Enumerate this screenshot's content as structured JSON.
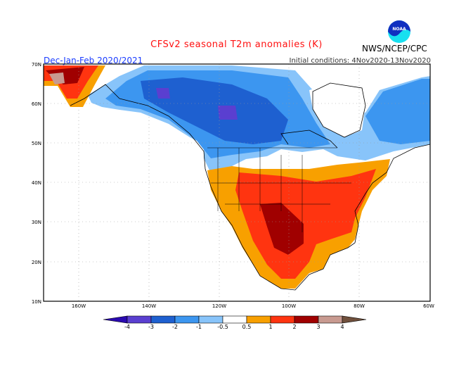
{
  "header": {
    "title": "CFSv2 seasonal T2m anomalies (K)",
    "season": "Dec-Jan-Feb 2020/2021",
    "initial_conditions": "Initial conditions: 4Nov2020-13Nov2020",
    "agency": "NWS/NCEP/CPC",
    "logo_text": "NOAA"
  },
  "map": {
    "lon_labels": [
      "160W",
      "140W",
      "120W",
      "100W",
      "80W",
      "60W"
    ],
    "lat_labels": [
      "70N",
      "60N",
      "50N",
      "40N",
      "30N",
      "20N",
      "10N"
    ]
  },
  "colorbar": {
    "labels": [
      "-4",
      "-3",
      "-2",
      "-1",
      "-0.5",
      "0.5",
      "1",
      "2",
      "3",
      "4"
    ],
    "colors": [
      "#2a0ab0",
      "#5a3fd0",
      "#1e60d0",
      "#3c96f0",
      "#88c4fa",
      "#ffffff",
      "#f8a000",
      "#ff3410",
      "#a00000",
      "#c89a90",
      "#70503c"
    ]
  }
}
